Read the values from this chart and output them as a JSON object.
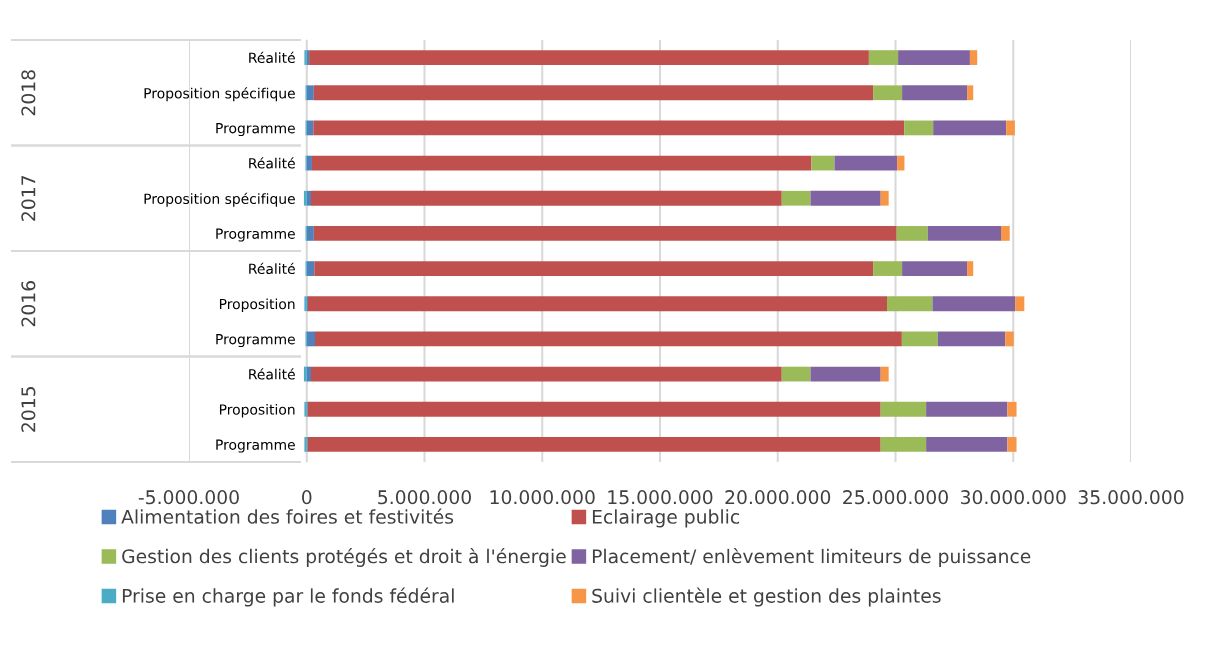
{
  "chart_data": {
    "type": "bar",
    "orientation": "horizontal",
    "stacked": true,
    "categories": [
      "Réalité",
      "Proposition spécifique",
      "Programme",
      "Réalité",
      "Proposition spécifique",
      "Programme",
      "Réalité",
      "Proposition",
      "Programme",
      "Réalité",
      "Proposition",
      "Programme"
    ],
    "annotations": [
      "2018",
      "2017",
      "2016",
      "2015"
    ],
    "series": [
      {
        "name": "Alimentation des foires et festivités",
        "color": "#4f81bd",
        "values": [
          100000,
          300000,
          280000,
          220000,
          180000,
          300000,
          320000,
          50000,
          350000,
          180000,
          40000,
          40000
        ]
      },
      {
        "name": "Eclairage public",
        "color": "#c0504d",
        "values": [
          23770000,
          23750000,
          25090000,
          21210000,
          19990000,
          24750000,
          23730000,
          24590000,
          24920000,
          19990000,
          24330000,
          24330000
        ]
      },
      {
        "name": "Gestion des clients protégés et droit à l'énergie",
        "color": "#9bbb59",
        "values": [
          1240000,
          1230000,
          1230000,
          980000,
          1220000,
          1320000,
          1230000,
          1930000,
          1530000,
          1220000,
          1930000,
          1930000
        ]
      },
      {
        "name": "Placement/ enlèvement limiteurs de puissance",
        "color": "#8064a2",
        "values": [
          3050000,
          2760000,
          3100000,
          2660000,
          2980000,
          3110000,
          2760000,
          3510000,
          2860000,
          2980000,
          3450000,
          3450000
        ]
      },
      {
        "name": "Prise en charge par le fonds fédéral",
        "color": "#4bacc6",
        "values": [
          -100000,
          -50000,
          -50000,
          -50000,
          -120000,
          -50000,
          -50000,
          -100000,
          -50000,
          -120000,
          -100000,
          -100000
        ]
      },
      {
        "name": "Suivi clientèle et gestion des plaintes",
        "color": "#f79646",
        "values": [
          310000,
          260000,
          370000,
          310000,
          340000,
          370000,
          260000,
          390000,
          360000,
          340000,
          390000,
          390000
        ]
      }
    ],
    "xlim": [
      -5000000,
      35000000
    ],
    "xticks": [
      {
        "value": -5000000,
        "label": "-5.000.000"
      },
      0,
      {
        "value": 5000000,
        "label": "5.000.000"
      },
      {
        "value": 10000000,
        "label": "10.000.000"
      },
      {
        "value": 15000000,
        "label": "15.000.000"
      },
      {
        "value": 20000000,
        "label": "20.000.000"
      },
      {
        "value": 25000000,
        "label": "25.000.000"
      },
      {
        "value": 30000000,
        "label": "30.000.000"
      },
      {
        "value": 35000000,
        "label": "35.000.000"
      }
    ],
    "grid": "x",
    "legend": "bottom"
  }
}
